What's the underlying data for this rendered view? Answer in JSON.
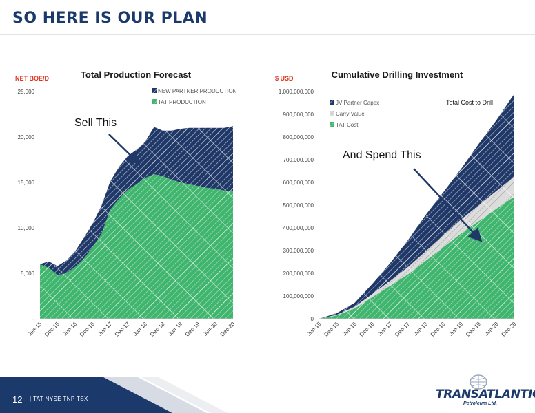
{
  "slide": {
    "title": "SO HERE IS OUR PLAN",
    "page_number": "12",
    "ticker": "| TAT NYSE  TNP TSX",
    "logo": "TRANSATLANTIC",
    "logo_sub": "Petroleum Ltd."
  },
  "colors": {
    "navy": "#1f3868",
    "green": "#3fb56e",
    "grey": "#c9c9c9",
    "red": "#e0321f",
    "title": "#1b3a6b"
  },
  "chart_data": [
    {
      "type": "area",
      "title": "Total Production Forecast",
      "ylabel": "NET BOE/D",
      "ylim": [
        0,
        25000
      ],
      "yticks": [
        0,
        5000,
        10000,
        15000,
        20000,
        25000
      ],
      "ytick_labels": [
        "-",
        "5,000",
        "10,000",
        "15,000",
        "20,000",
        "25,000"
      ],
      "xtick_labels": [
        "Jun-15",
        "Dec-15",
        "Jun-16",
        "Dec-16",
        "Jun-17",
        "Dec-17",
        "Jun-18",
        "Dec-18",
        "Jun-19",
        "Dec-19",
        "Jun-20",
        "Dec-20"
      ],
      "x_range": [
        0,
        66
      ],
      "legend": [
        "NEW PARTNER PRODUCTION",
        "TAT PRODUCTION"
      ],
      "legend_position": "top-right",
      "annotation": "Sell This",
      "series": [
        {
          "name": "TAT PRODUCTION",
          "x": [
            0,
            3,
            6,
            9,
            12,
            15,
            18,
            21,
            24,
            27,
            30,
            33,
            36,
            39,
            42,
            45,
            48,
            51,
            54,
            57,
            60,
            63,
            66
          ],
          "values": [
            6000,
            5600,
            4800,
            5000,
            5700,
            6600,
            7900,
            9300,
            12000,
            13200,
            14200,
            14800,
            15500,
            15900,
            15700,
            15300,
            15000,
            14800,
            14600,
            14400,
            14300,
            14100,
            14000
          ]
        },
        {
          "name": "NEW PARTNER PRODUCTION",
          "x": [
            0,
            3,
            6,
            9,
            12,
            15,
            18,
            21,
            24,
            27,
            30,
            33,
            36,
            39,
            42,
            45,
            48,
            51,
            54,
            57,
            60,
            63,
            66
          ],
          "values": [
            0,
            700,
            1000,
            1400,
            1700,
            2300,
            2600,
            3100,
            3100,
            3500,
            3700,
            3800,
            4000,
            5200,
            5000,
            5400,
            5900,
            6200,
            6400,
            6600,
            6700,
            6900,
            7200
          ]
        }
      ]
    },
    {
      "type": "area",
      "title": "Cumulative Drilling Investment",
      "ylabel": "$ USD",
      "ylim": [
        0,
        1000000000
      ],
      "yticks": [
        0,
        100000000,
        200000000,
        300000000,
        400000000,
        500000000,
        600000000,
        700000000,
        800000000,
        900000000,
        1000000000
      ],
      "ytick_labels": [
        "0",
        "100,000,000",
        "200,000,000",
        "300,000,000",
        "400,000,000",
        "500,000,000",
        "600,000,000",
        "700,000,000",
        "800,000,000",
        "900,000,000",
        "1,000,000,000"
      ],
      "xtick_labels": [
        "Jun-15",
        "Dec-15",
        "Jun-16",
        "Dec-16",
        "Jun-17",
        "Dec-17",
        "Jun-18",
        "Dec-18",
        "Jun-19",
        "Dec-19",
        "Jun-20",
        "Dec-20"
      ],
      "x_range": [
        0,
        66
      ],
      "legend": [
        "JV Partner Capex",
        "Carry Value",
        "TAT Cost"
      ],
      "legend_position": "top-left",
      "annotations": [
        "Total Cost to Drill",
        "And Spend This"
      ],
      "series": [
        {
          "name": "TAT Cost",
          "x": [
            0,
            6,
            12,
            18,
            24,
            30,
            36,
            42,
            48,
            54,
            60,
            66
          ],
          "values": [
            0,
            15000000,
            45000000,
            95000000,
            145000000,
            195000000,
            255000000,
            315000000,
            375000000,
            430000000,
            485000000,
            538000000
          ]
        },
        {
          "name": "Carry Value",
          "x": [
            0,
            6,
            12,
            18,
            24,
            30,
            36,
            42,
            48,
            54,
            60,
            66
          ],
          "values": [
            0,
            3000000,
            8000000,
            14000000,
            22000000,
            32000000,
            42000000,
            52000000,
            62000000,
            70000000,
            78000000,
            88000000
          ]
        },
        {
          "name": "JV Partner Capex",
          "x": [
            0,
            6,
            12,
            18,
            24,
            30,
            36,
            42,
            48,
            54,
            60,
            66
          ],
          "values": [
            0,
            7000000,
            17000000,
            45000000,
            78000000,
            118000000,
            160000000,
            190000000,
            223000000,
            270000000,
            312000000,
            364000000
          ]
        }
      ]
    }
  ]
}
